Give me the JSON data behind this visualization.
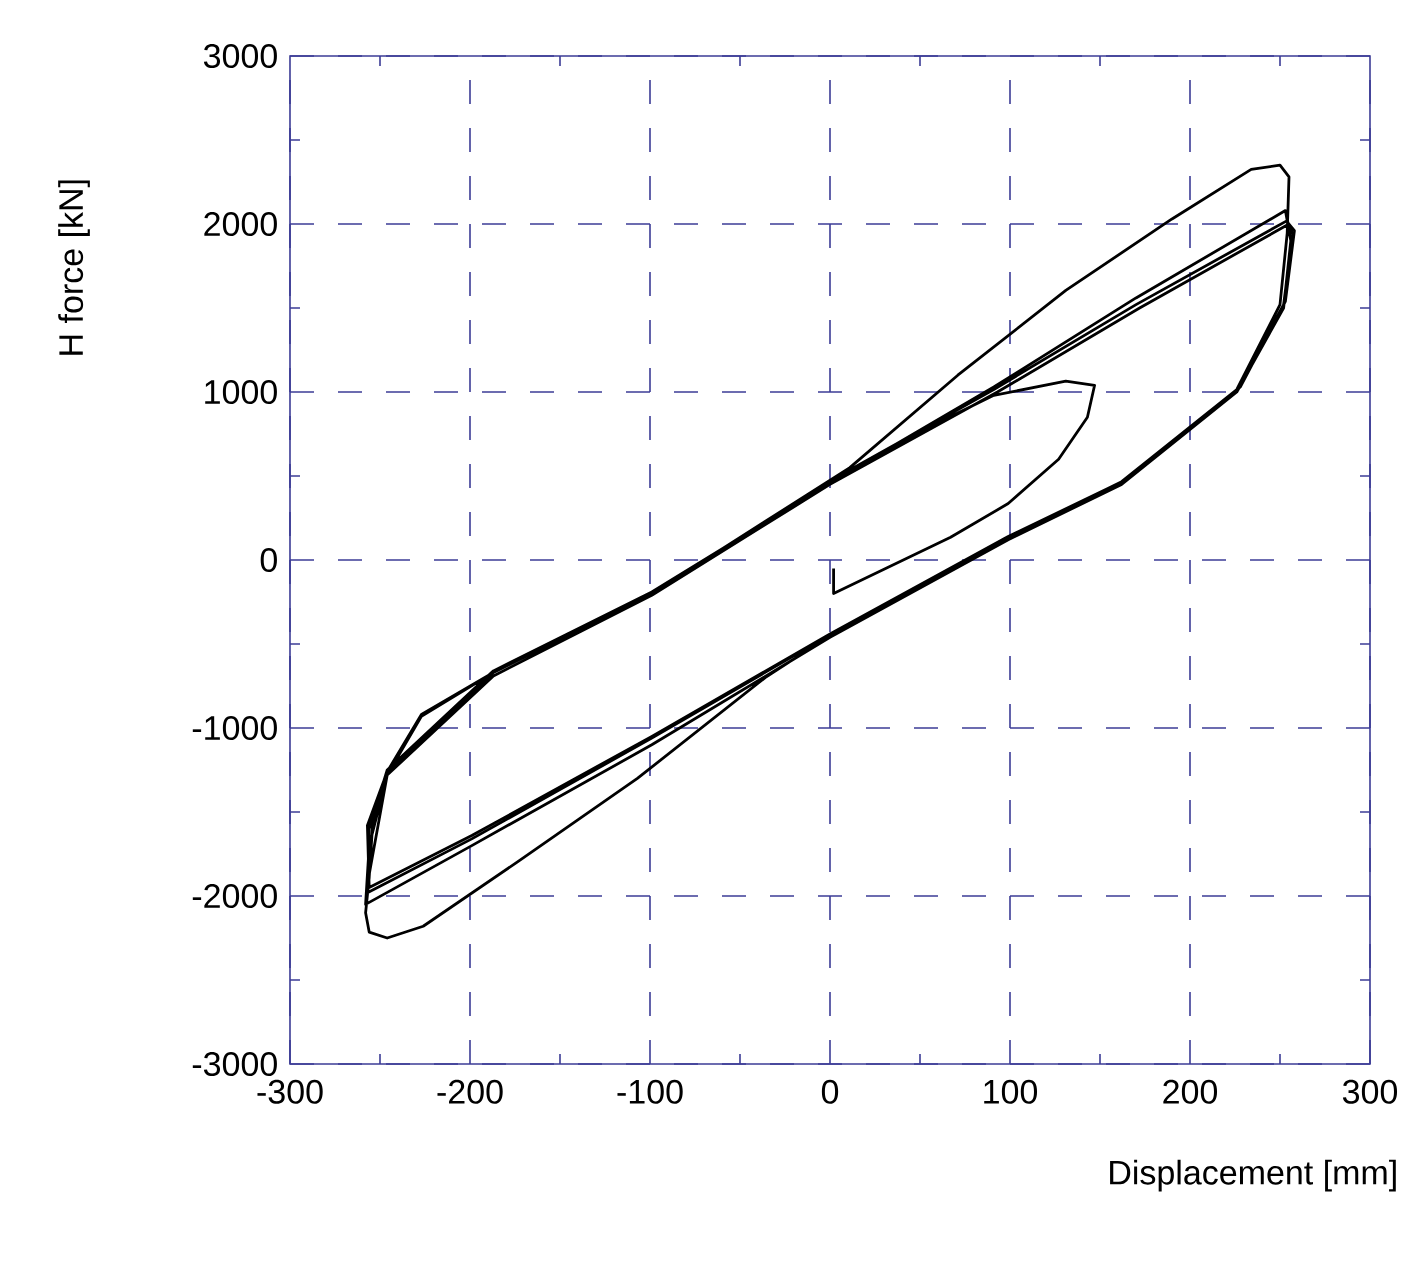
{
  "chart_data": {
    "type": "line",
    "xlabel": "Displacement [mm]",
    "ylabel": "H force [kN]",
    "xlim": [
      -300,
      300
    ],
    "ylim": [
      -3000,
      3000
    ],
    "xticks": [
      -300,
      -200,
      -100,
      0,
      100,
      200,
      300
    ],
    "yticks": [
      -3000,
      -2000,
      -1000,
      0,
      1000,
      2000,
      3000
    ],
    "grid": true,
    "series": [
      {
        "color": "#000000",
        "x": [
          2,
          2,
          67,
          99,
          127,
          143,
          147,
          131,
          91,
          51,
          2,
          -99,
          -187,
          -227,
          -246,
          -254,
          -256,
          -258,
          -256,
          -246,
          -226,
          -174,
          -107,
          -36,
          0,
          99,
          162,
          226,
          250,
          254,
          255,
          250,
          234,
          190,
          131,
          71,
          11,
          -99,
          -187,
          -227,
          -246,
          -256,
          -258,
          -199,
          -99,
          0,
          99,
          162,
          226,
          252,
          256,
          253,
          170,
          91,
          0,
          -99,
          -187,
          -246,
          -256,
          -257,
          -199,
          -99,
          0,
          99,
          162,
          226,
          252,
          257,
          254,
          170,
          91,
          0,
          -99,
          -187,
          -246,
          -257,
          -256,
          -199,
          -99,
          0,
          99,
          165,
          228,
          253,
          258,
          255,
          172,
          93,
          0,
          -99,
          -187,
          -246,
          -257
        ],
        "values": [
          -50,
          -200,
          135,
          336,
          600,
          850,
          1040,
          1065,
          980,
          770,
          470,
          -200,
          -670,
          -920,
          -1260,
          -1560,
          -1890,
          -2100,
          -2215,
          -2250,
          -2180,
          -1800,
          -1300,
          -700,
          -450,
          135,
          466,
          1015,
          1520,
          1945,
          2280,
          2350,
          2325,
          2030,
          1605,
          1100,
          550,
          -200,
          -670,
          -930,
          -1280,
          -1700,
          -2050,
          -1700,
          -1100,
          -460,
          120,
          450,
          1000,
          1500,
          1900,
          2080,
          1560,
          1030,
          460,
          -190,
          -660,
          -1250,
          -1600,
          -1980,
          -1660,
          -1060,
          -445,
          135,
          466,
          1015,
          1520,
          1940,
          2020,
          1520,
          1015,
          470,
          -200,
          -670,
          -1260,
          -1580,
          -1950,
          -1640,
          -1050,
          -440,
          140,
          480,
          1030,
          1540,
          1960,
          2000,
          1500,
          1000,
          450,
          -210,
          -690,
          -1280,
          -1930
        ]
      }
    ]
  }
}
